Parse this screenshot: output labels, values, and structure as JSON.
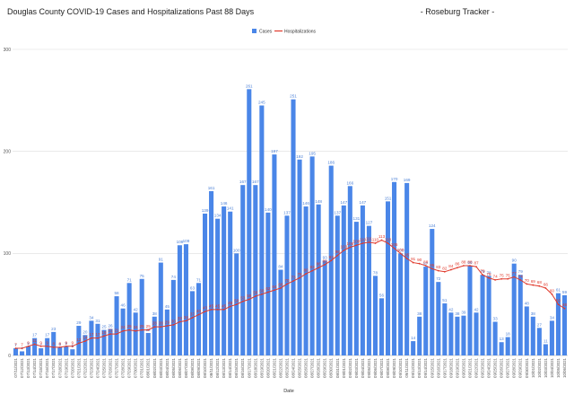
{
  "chart_data": {
    "type": "bar",
    "title": "Douglas County COVID-19 Cases and Hospitalizations Past 88 Days",
    "subtitle": "- Roseburg Tracker -",
    "xlabel": "Date",
    "ylabel": "",
    "ylim": [
      0,
      300
    ],
    "yticks": [
      0,
      100,
      200,
      300
    ],
    "grid": true,
    "legend_position": "top",
    "colors": {
      "bars": "#4a86e8",
      "line": "#e0392b"
    },
    "categories": [
      "07/11/2021",
      "07/12/2021",
      "07/13/2021",
      "07/14/2021",
      "07/15/2021",
      "07/16/2021",
      "07/17/2021",
      "07/18/2021",
      "07/19/2021",
      "07/20/2021",
      "07/21/2021",
      "07/22/2021",
      "07/23/2021",
      "07/24/2021",
      "07/25/2021",
      "07/26/2021",
      "07/27/2021",
      "07/28/2021",
      "07/29/2021",
      "07/30/2021",
      "07/31/2021",
      "08/01/2021",
      "08/02/2021",
      "08/03/2021",
      "08/04/2021",
      "08/05/2021",
      "08/06/2021",
      "08/07/2021",
      "08/08/2021",
      "08/09/2021",
      "08/10/2021",
      "08/11/2021",
      "08/12/2021",
      "08/13/2021",
      "08/14/2021",
      "08/15/2021",
      "08/16/2021",
      "08/17/2021",
      "08/18/2021",
      "08/19/2021",
      "08/20/2021",
      "08/21/2021",
      "08/22/2021",
      "08/23/2021",
      "08/24/2021",
      "08/25/2021",
      "08/26/2021",
      "08/27/2021",
      "08/28/2021",
      "08/29/2021",
      "08/30/2021",
      "08/31/2021",
      "09/01/2021",
      "09/02/2021",
      "09/03/2021",
      "09/04/2021",
      "09/05/2021",
      "09/06/2021",
      "09/07/2021",
      "09/08/2021",
      "09/09/2021",
      "09/10/2021",
      "09/11/2021",
      "09/12/2021",
      "09/13/2021",
      "09/14/2021",
      "09/15/2021",
      "09/16/2021",
      "09/17/2021",
      "09/18/2021",
      "09/19/2021",
      "09/20/2021",
      "09/21/2021",
      "09/22/2021",
      "09/23/2021",
      "09/24/2021",
      "09/25/2021",
      "09/26/2021",
      "09/27/2021",
      "09/28/2021",
      "09/29/2021",
      "09/30/2021",
      "10/01/2021",
      "10/02/2021",
      "10/03/2021",
      "10/04/2021",
      "10/05/2021",
      "10/06/2021"
    ],
    "xtick_labels": [
      "07/11/2021",
      "07/12/2021",
      "07/13/2021",
      "07/14/2021",
      "07/15/2021",
      "07/16/2021",
      "07/17/2021",
      "07/18/2021",
      "07/19/2021",
      "07/20/2021",
      "07/21/2021",
      "07/22/2021",
      "07/23/2021",
      "07/24/2021",
      "07/25/2021",
      "07/26/2021",
      "07/27/2021",
      "07/28/2021",
      "07/29/2021",
      "07/30/2021",
      "07/31/2021",
      "08/01/2021",
      "08/02/2021",
      "08/03/2021",
      "08/04/2021",
      "08/05/2021",
      "08/06/2021",
      "08/07/2021",
      "08/08/2021",
      "08/09/2021",
      "08/10/2021",
      "08/11/2021",
      "08/12/2021",
      "08/13/2021",
      "08/14/2021",
      "08/15/2021",
      "08/16/2021",
      "08/17/2021",
      "08/18/2021",
      "08/19/2021",
      "08/20/2021",
      "08/21/2021",
      "08/22/2021",
      "08/23/2021",
      "08/24/2021",
      "08/25/2021",
      "08/26/2021",
      "08/27/2021",
      "08/28/2021",
      "08/29/2021",
      "08/30/2021",
      "08/31/2021",
      "09/01/2021",
      "09/02/2021",
      "09/03/2021",
      "09/04/2021",
      "09/05/2021",
      "09/06/2021",
      "09/07/2021",
      "09/08/2021",
      "09/09/2021",
      "09/10/2021",
      "09/11/2021",
      "09/12/2021",
      "09/13/2021",
      "09/14/2021",
      "09/15/2021",
      "09/16/2021",
      "09/17/2021",
      "09/18/2021",
      "09/19/2021",
      "09/20/2021",
      "09/21/2021",
      "09/22/2021",
      "09/23/2021",
      "09/24/2021",
      "09/25/2021",
      "09/26/2021",
      "09/27/2021",
      "09/28/2021",
      "09/29/2021",
      "09/30/2021",
      "10/01/2021",
      "10/02/2021",
      "10/03/2021",
      "10/04/2021",
      "10/05/2021",
      "10/06/2021"
    ],
    "series": [
      {
        "name": "Cases",
        "type": "bar",
        "values": [
          7,
          4,
          9,
          17,
          7,
          17,
          23,
          8,
          9,
          6,
          29,
          20,
          34,
          31,
          25,
          26,
          58,
          46,
          71,
          42,
          75,
          22,
          38,
          91,
          45,
          74,
          108,
          109,
          63,
          71,
          139,
          161,
          134,
          146,
          141,
          100,
          167,
          261,
          167,
          245,
          140,
          197,
          84,
          137,
          251,
          192,
          146,
          195,
          148,
          93,
          186,
          137,
          147,
          166,
          131,
          147,
          127,
          78,
          56,
          151,
          170,
          100,
          169,
          14,
          38,
          87,
          124,
          72,
          51,
          42,
          38,
          39,
          88,
          42,
          79,
          78,
          33,
          13,
          18,
          90,
          79,
          48,
          38,
          27,
          11,
          34,
          61,
          59
        ]
      },
      {
        "name": "Hospitalizations",
        "type": "line",
        "values": [
          7,
          7,
          9,
          11,
          9,
          9,
          8,
          8,
          9,
          9,
          12,
          14,
          17,
          17,
          19,
          21,
          21,
          24,
          25,
          24,
          25,
          25,
          28,
          28,
          29,
          30,
          33,
          34,
          37,
          40,
          43,
          45,
          45,
          45,
          48,
          50,
          53,
          55,
          58,
          60,
          62,
          64,
          66,
          70,
          73,
          76,
          80,
          83,
          86,
          89,
          93,
          98,
          103,
          106,
          108,
          110,
          111,
          110,
          113,
          110,
          105,
          100,
          95,
          91,
          90,
          88,
          85,
          83,
          82,
          84,
          86,
          88,
          88,
          87,
          79,
          76,
          74,
          75,
          75,
          77,
          74,
          70,
          69,
          68,
          66,
          60,
          50,
          46
        ]
      }
    ]
  }
}
